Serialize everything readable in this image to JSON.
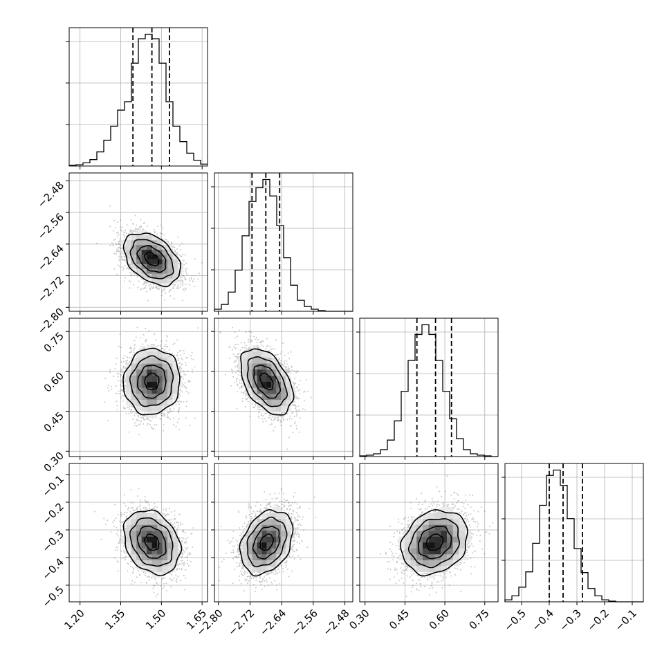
{
  "chart_data": {
    "type": "corner",
    "title": "",
    "grid": true,
    "parameters": [
      {
        "key": "p1",
        "xlim": [
          1.16,
          1.67
        ],
        "ticks": [
          1.2,
          1.35,
          1.5,
          1.65
        ],
        "tick_labels": [
          "1.20",
          "1.35",
          "1.50",
          "1.65"
        ],
        "quantiles": [
          1.395,
          1.465,
          1.53
        ],
        "median": 1.465,
        "std": 0.052
      },
      {
        "key": "p2",
        "xlim": [
          -2.81,
          -2.46
        ],
        "ticks": [
          -2.8,
          -2.72,
          -2.64,
          -2.56,
          -2.48
        ],
        "tick_labels": [
          "−2.80",
          "−2.72",
          "−2.64",
          "−2.56",
          "−2.48"
        ],
        "quantiles": [
          -2.715,
          -2.68,
          -2.645
        ],
        "median": -2.678,
        "std": 0.033
      },
      {
        "key": "p3",
        "xlim": [
          0.28,
          0.8
        ],
        "ticks": [
          0.3,
          0.45,
          0.6,
          0.75
        ],
        "tick_labels": [
          "0.30",
          "0.45",
          "0.60",
          "0.75"
        ],
        "quantiles": [
          0.495,
          0.565,
          0.625
        ],
        "median": 0.562,
        "std": 0.062
      },
      {
        "key": "p4",
        "xlim": [
          -0.56,
          -0.06
        ],
        "ticks": [
          -0.5,
          -0.4,
          -0.3,
          -0.2,
          -0.1
        ],
        "tick_labels": [
          "−0.5",
          "−0.4",
          "−0.3",
          "−0.2",
          "−0.1"
        ],
        "quantiles": [
          -0.4,
          -0.35,
          -0.28
        ],
        "median": -0.345,
        "std": 0.058
      }
    ],
    "correlations": {
      "p2_p1": -0.4,
      "p3_p1": 0.05,
      "p3_p2": -0.45,
      "p4_p1": -0.25,
      "p4_p2": 0.3,
      "p4_p3": 0.2
    },
    "histograms": {
      "p1": {
        "edges": [
          1.16,
          1.1855,
          1.211,
          1.2365,
          1.262,
          1.2875,
          1.313,
          1.3385,
          1.364,
          1.3895,
          1.415,
          1.4405,
          1.466,
          1.4915,
          1.517,
          1.5425,
          1.568,
          1.5935,
          1.619,
          1.6445,
          1.67
        ],
        "counts": [
          1,
          2,
          5,
          10,
          22,
          40,
          62,
          87,
          100,
          160,
          198,
          205,
          198,
          160,
          100,
          62,
          38,
          20,
          9,
          3
        ]
      },
      "p2": {
        "edges": [
          -2.81,
          -2.7925,
          -2.775,
          -2.7575,
          -2.74,
          -2.7225,
          -2.705,
          -2.6875,
          -2.67,
          -2.6525,
          -2.635,
          -2.6175,
          -2.6,
          -2.5825,
          -2.565,
          -2.5475,
          -2.53,
          -2.5125,
          -2.495,
          -2.4775,
          -2.46
        ],
        "counts": [
          3,
          10,
          28,
          60,
          110,
          160,
          180,
          192,
          168,
          125,
          78,
          38,
          16,
          7,
          3,
          1,
          0,
          0,
          0,
          0
        ]
      },
      "p3": {
        "edges": [
          0.28,
          0.306,
          0.332,
          0.358,
          0.384,
          0.41,
          0.436,
          0.462,
          0.488,
          0.514,
          0.54,
          0.566,
          0.592,
          0.618,
          0.644,
          0.67,
          0.696,
          0.722,
          0.748,
          0.774,
          0.8
        ],
        "counts": [
          1,
          2,
          4,
          10,
          24,
          52,
          95,
          140,
          178,
          192,
          178,
          140,
          95,
          55,
          26,
          10,
          4,
          2,
          1,
          0
        ]
      },
      "p4": {
        "edges": [
          -0.56,
          -0.535,
          -0.51,
          -0.485,
          -0.46,
          -0.435,
          -0.41,
          -0.385,
          -0.36,
          -0.335,
          -0.31,
          -0.285,
          -0.26,
          -0.235,
          -0.21,
          -0.185,
          -0.16,
          -0.135,
          -0.11,
          -0.085,
          -0.06
        ],
        "counts": [
          3,
          9,
          22,
          45,
          88,
          145,
          190,
          198,
          175,
          125,
          80,
          44,
          20,
          9,
          3,
          1,
          0,
          0,
          0,
          0
        ]
      }
    }
  }
}
